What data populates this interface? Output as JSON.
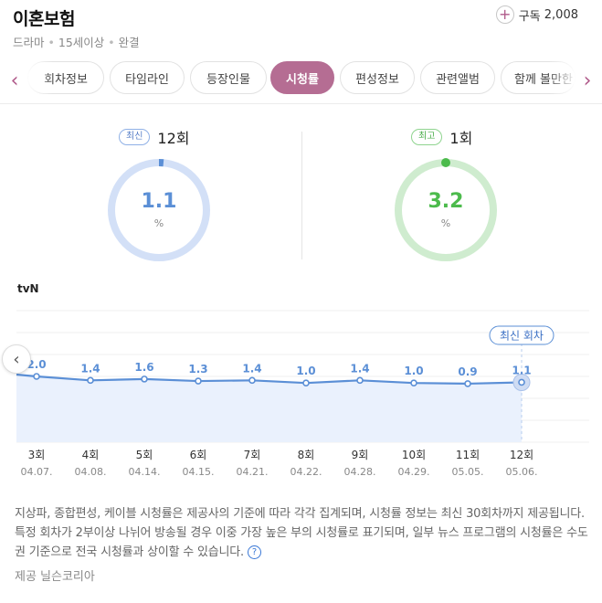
{
  "header": {
    "title": "이혼보험",
    "meta": [
      "드라마",
      "15세이상",
      "완결"
    ],
    "subscribe_label": "구독",
    "subscribe_count": "2,008"
  },
  "tabs": [
    {
      "label": "회차정보",
      "active": false
    },
    {
      "label": "타임라인",
      "active": false
    },
    {
      "label": "등장인물",
      "active": false
    },
    {
      "label": "시청률",
      "active": true
    },
    {
      "label": "편성정보",
      "active": false
    },
    {
      "label": "관련앨범",
      "active": false
    },
    {
      "label": "함께 볼만한",
      "active": false
    }
  ],
  "stats": {
    "latest": {
      "badge": "최신",
      "episode": "12회",
      "value": "1.1",
      "unit": "%",
      "color": "#5b8fd6",
      "track": "#d3e0f7",
      "fraction": 0.011
    },
    "highest": {
      "badge": "최고",
      "episode": "1회",
      "value": "3.2",
      "unit": "%",
      "color": "#4cbb4c",
      "track": "#cfeccf",
      "fraction": 0.032
    }
  },
  "chart_data": {
    "type": "line",
    "title": "tvN",
    "categories": [
      "3회",
      "4회",
      "5회",
      "6회",
      "7회",
      "8회",
      "9회",
      "10회",
      "11회",
      "12회"
    ],
    "dates": [
      "04.07.",
      "04.08.",
      "04.14.",
      "04.15.",
      "04.21.",
      "04.22.",
      "04.28.",
      "04.29.",
      "05.05.",
      "05.06."
    ],
    "values": [
      2.0,
      1.4,
      1.6,
      1.3,
      1.4,
      1.0,
      1.4,
      1.0,
      0.9,
      1.1
    ],
    "labels": [
      "2.0",
      "1.4",
      "1.6",
      "1.3",
      "1.4",
      "1.0",
      "1.4",
      "1.0",
      "0.9",
      "1.1"
    ],
    "ylim": [
      -8,
      12
    ],
    "grid": true,
    "highlight_label": "최신 회차",
    "line_color": "#5b8fd6",
    "fill_color": "#eaf1fd"
  },
  "footnote": "지상파, 종합편성, 케이블 시청률은 제공사의 기준에 따라 각각 집계되며, 시청률 정보는 최신 30회차까지 제공됩니다. 특정 회차가 2부이상 나뉘어 방송될 경우 이중 가장 높은 부의 시청률로 표기되며, 일부 뉴스 프로그램의 시청률은 수도권 기준으로 전국 시청률과 상이할 수 있습니다.",
  "provider": "제공 닐슨코리아"
}
